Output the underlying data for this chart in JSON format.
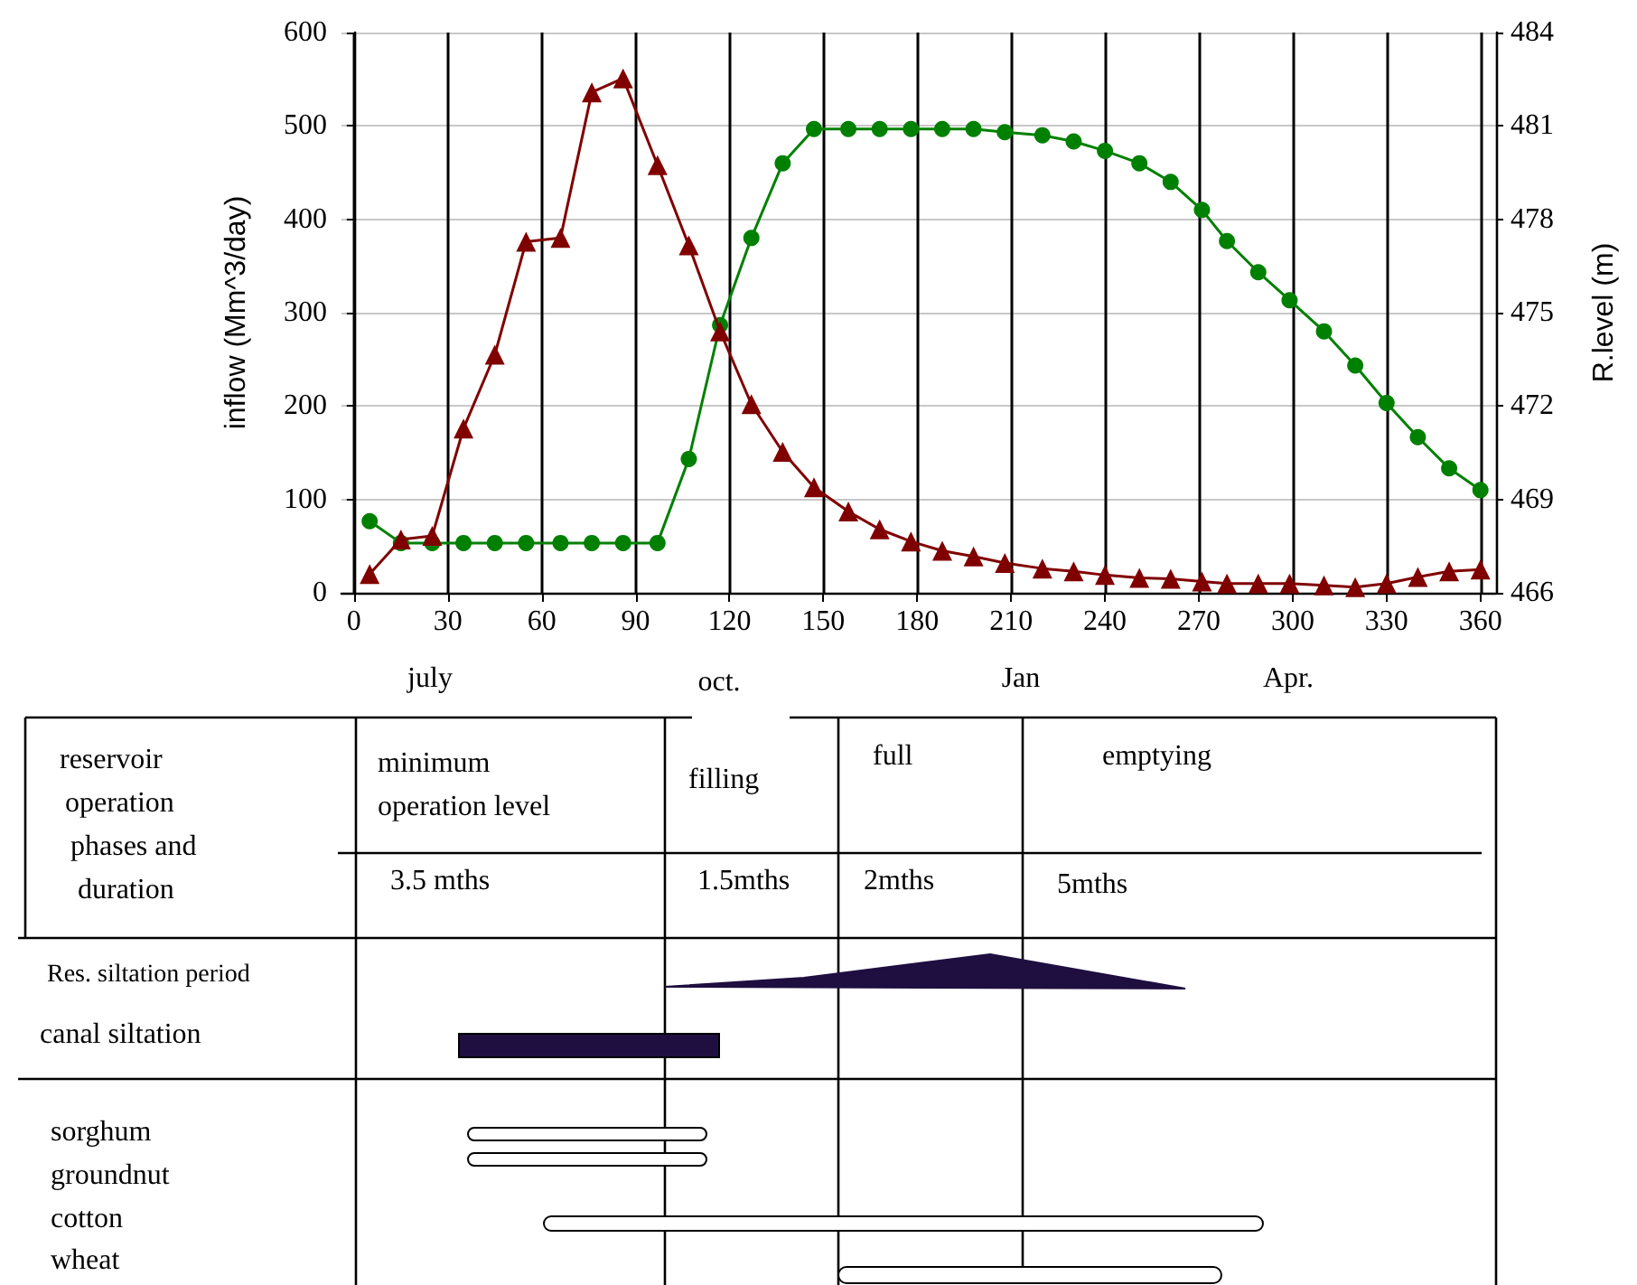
{
  "chart_data": {
    "type": "line",
    "ylabel": "inflow (Mm^3/day)",
    "y2label": "R.level (m)",
    "x": [
      5,
      15,
      25,
      35,
      45,
      55,
      66,
      76,
      86,
      97,
      107,
      117,
      127,
      137,
      147,
      158,
      168,
      178,
      188,
      198,
      208,
      220,
      230,
      240,
      251,
      261,
      271,
      279,
      289,
      299,
      310,
      320,
      330,
      340,
      350,
      360
    ],
    "series": [
      {
        "color": "#800000",
        "marker": "triangle",
        "values": [
          20,
          57,
          61,
          176,
          255,
          376,
          380,
          536,
          551,
          458,
          372,
          280,
          202,
          151,
          113,
          87,
          68,
          55,
          45,
          39,
          32,
          26,
          23,
          19,
          16,
          15,
          12,
          10,
          10,
          10,
          8,
          6,
          10,
          17,
          23,
          25
        ]
      },
      {
        "axis": "y2",
        "color": "#008000",
        "marker": "circle",
        "values": [
          468.3,
          467.6,
          467.6,
          467.6,
          467.6,
          467.6,
          467.6,
          467.6,
          467.6,
          467.6,
          470.3,
          474.6,
          477.4,
          479.8,
          480.9,
          480.9,
          480.9,
          480.9,
          480.9,
          480.9,
          480.8,
          480.7,
          480.5,
          480.2,
          479.8,
          479.2,
          478.3,
          477.3,
          476.3,
          475.4,
          474.4,
          473.3,
          472.1,
          471.0,
          470.0,
          469.3
        ]
      }
    ],
    "xlim": [
      -4,
      365
    ],
    "xticks": [
      0,
      30,
      60,
      90,
      120,
      150,
      180,
      210,
      240,
      270,
      300,
      330,
      360
    ],
    "ylim": [
      0,
      600
    ],
    "yticks": [
      0,
      100,
      200,
      300,
      400,
      500,
      600
    ],
    "y2lim": [
      466,
      484
    ],
    "y2ticks": [
      466,
      469,
      472,
      475,
      478,
      481,
      484
    ],
    "grid": true,
    "annotations": [
      "july",
      "oct.",
      "Jan",
      "Apr.",
      "reservoir\noperation\nphases and\nduration",
      "minimum\noperation level",
      "filling",
      "full",
      "emptying",
      "3.5 mths",
      "1.5mths",
      "2mths",
      "5mths",
      "Res. siltation period",
      "canal siltation",
      "sorghum",
      "groundnut",
      "cotton",
      "wheat"
    ]
  }
}
